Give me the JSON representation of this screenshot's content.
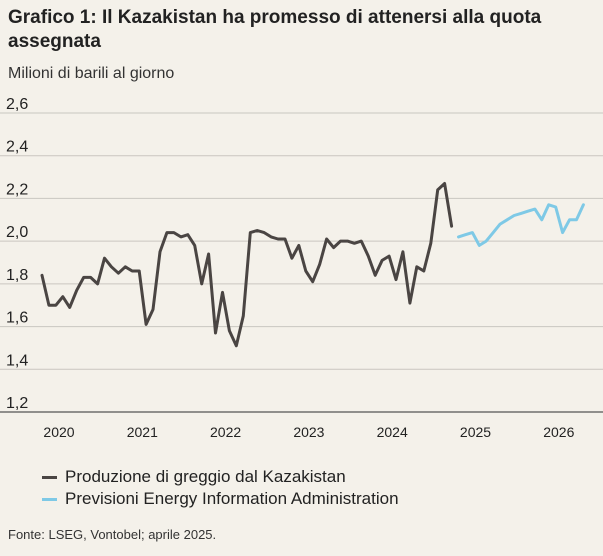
{
  "title": "Grafico 1: Il Kazakistan ha promesso di attenersi alla quota assegnata",
  "subtitle": "Milioni di barili al giorno",
  "source": "Fonte: LSEG, Vontobel; aprile 2025.",
  "colors": {
    "production": "#4a4543",
    "forecast": "#7ec9e6",
    "grid": "#c9c6c0",
    "background": "#f4f1ea"
  },
  "chart_data": {
    "type": "line",
    "title": "Grafico 1: Il Kazakistan ha promesso di attenersi alla quota assegnata",
    "ylabel": "Milioni di barili al giorno",
    "xlabel": "",
    "xlim": [
      2020.0,
      2026.5
    ],
    "ylim": [
      1.2,
      2.6
    ],
    "yticks": [
      1.2,
      1.4,
      1.6,
      1.8,
      2.0,
      2.2,
      2.4,
      2.6
    ],
    "ytick_labels": [
      "1,2",
      "1,4",
      "1,6",
      "1,8",
      "2,0",
      "2,2",
      "2,4",
      "2,6"
    ],
    "xticks": [
      2020,
      2021,
      2022,
      2023,
      2024,
      2025,
      2026
    ],
    "xtick_labels": [
      "2020",
      "2021",
      "2022",
      "2023",
      "2024",
      "2025",
      "2026"
    ],
    "grid": "horizontal",
    "legend_position": "bottom",
    "series": [
      {
        "name": "Produzione di greggio dal Kazakistan",
        "color": "#4a4543",
        "x": [
          2020.0,
          2020.083,
          2020.167,
          2020.25,
          2020.333,
          2020.417,
          2020.5,
          2020.583,
          2020.667,
          2020.75,
          2020.833,
          2020.917,
          2021.0,
          2021.083,
          2021.167,
          2021.25,
          2021.333,
          2021.417,
          2021.5,
          2021.583,
          2021.667,
          2021.75,
          2021.833,
          2021.917,
          2022.0,
          2022.083,
          2022.167,
          2022.25,
          2022.333,
          2022.417,
          2022.5,
          2022.583,
          2022.667,
          2022.75,
          2022.833,
          2022.917,
          2023.0,
          2023.083,
          2023.167,
          2023.25,
          2023.333,
          2023.417,
          2023.5,
          2023.583,
          2023.667,
          2023.75,
          2023.833,
          2023.917,
          2024.0,
          2024.083,
          2024.167,
          2024.25,
          2024.333,
          2024.417,
          2024.5,
          2024.583,
          2024.667,
          2024.75,
          2024.833,
          2024.917
        ],
        "y": [
          1.84,
          1.7,
          1.7,
          1.74,
          1.69,
          1.77,
          1.83,
          1.83,
          1.8,
          1.92,
          1.88,
          1.85,
          1.88,
          1.86,
          1.86,
          1.61,
          1.68,
          1.95,
          2.04,
          2.04,
          2.02,
          2.03,
          1.98,
          1.8,
          1.94,
          1.57,
          1.76,
          1.58,
          1.51,
          1.65,
          2.04,
          2.05,
          2.04,
          2.02,
          2.01,
          2.01,
          1.92,
          1.98,
          1.86,
          1.81,
          1.89,
          2.01,
          1.97,
          2.0,
          2.0,
          1.99,
          2.0,
          1.93,
          1.84,
          1.91,
          1.93,
          1.82,
          1.95,
          1.71,
          1.88,
          1.86,
          1.99,
          2.24,
          2.27,
          2.07
        ]
      },
      {
        "name": "Previsioni Energy Information Administration",
        "color": "#7ec9e6",
        "x": [
          2025.0,
          2025.083,
          2025.167,
          2025.25,
          2025.333,
          2025.417,
          2025.5,
          2025.583,
          2025.667,
          2025.75,
          2025.833,
          2025.917,
          2026.0,
          2026.083,
          2026.167,
          2026.25,
          2026.333,
          2026.417,
          2026.5
        ],
        "y": [
          2.02,
          2.03,
          2.04,
          1.98,
          2.0,
          2.04,
          2.08,
          2.1,
          2.12,
          2.13,
          2.14,
          2.15,
          2.1,
          2.17,
          2.16,
          2.04,
          2.1,
          2.1,
          2.17
        ]
      }
    ]
  }
}
